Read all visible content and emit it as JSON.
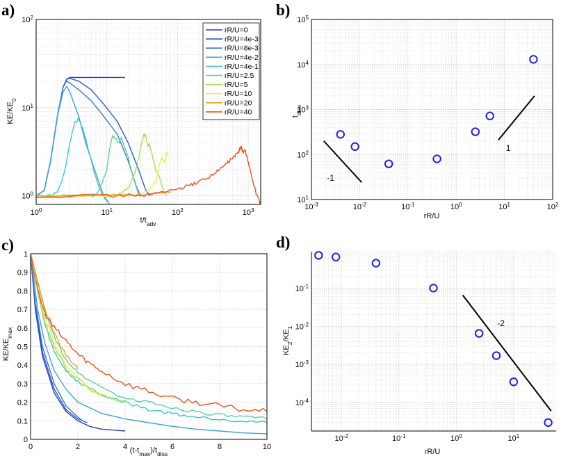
{
  "chart_data": [
    {
      "panel": "a",
      "panel_label": "a)",
      "type": "line",
      "xscale": "log",
      "yscale": "log",
      "xlim": [
        1,
        1500
      ],
      "ylim": [
        0.8,
        100
      ],
      "xlabel": "t/t",
      "xlabel_sub": "adv",
      "ylabel": "KE/KE",
      "ylabel_sub": "0",
      "xticks": [
        1,
        10,
        100,
        1000
      ],
      "yticks": [
        1,
        10,
        100
      ],
      "legend_position": "top-right",
      "series": [
        {
          "name": "rR/U=0",
          "color": "#1f3fbf",
          "x": [
            1,
            1.3,
            1.6,
            2,
            2.4,
            2.7,
            3,
            4,
            6,
            10,
            15,
            18
          ],
          "y": [
            1,
            1.15,
            2.5,
            8,
            17,
            21,
            22,
            22,
            22,
            22,
            22,
            22
          ]
        },
        {
          "name": "rR/U=4e-3",
          "color": "#2b55d6",
          "x": [
            1,
            1.3,
            1.6,
            2,
            2.4,
            2.7,
            3,
            4,
            6,
            9,
            14,
            20,
            28,
            35,
            40
          ],
          "y": [
            1,
            1.15,
            2.5,
            8,
            17,
            21,
            21.5,
            20,
            16,
            11,
            7,
            4,
            2,
            1.2,
            1
          ]
        },
        {
          "name": "rR/U=8e-3",
          "color": "#3a73c8",
          "x": [
            1,
            1.3,
            1.6,
            2,
            2.4,
            2.7,
            3,
            4,
            6,
            9,
            14,
            20,
            26,
            30
          ],
          "y": [
            1,
            1.15,
            2.5,
            8,
            17,
            20,
            19,
            16,
            12,
            8,
            5,
            2.5,
            1.3,
            1
          ]
        },
        {
          "name": "rR/U=4e-2",
          "color": "#3f9fe0",
          "x": [
            1,
            1.3,
            1.6,
            2,
            2.4,
            2.7,
            3,
            4,
            5,
            7,
            9,
            11
          ],
          "y": [
            1,
            1.15,
            2.5,
            8,
            15,
            17.5,
            15,
            8,
            4,
            1.8,
            1,
            0.8
          ]
        },
        {
          "name": "rR/U=4e-1",
          "color": "#38c8c8",
          "x": [
            1,
            1.6,
            2,
            2.5,
            3,
            3.5,
            4,
            4.5,
            5,
            6,
            7,
            8,
            9,
            10
          ],
          "y": [
            1,
            1,
            1.1,
            1.8,
            4,
            6.8,
            7.5,
            6,
            4.5,
            2.5,
            1.6,
            1.2,
            1,
            0.85
          ]
        },
        {
          "name": "rR/U=2.5",
          "color": "#5ad29a",
          "x": [
            1,
            3,
            5,
            7,
            8,
            10,
            11,
            12,
            13,
            15,
            16,
            18,
            20,
            22,
            25,
            28,
            30
          ],
          "y": [
            1,
            1,
            1,
            1.05,
            1.2,
            2,
            3.5,
            4.8,
            4.5,
            4,
            4.6,
            3.5,
            2.8,
            2,
            1.4,
            1.05,
            1
          ]
        },
        {
          "name": "rR/U=5",
          "color": "#a6df5a",
          "x": [
            1,
            5,
            10,
            15,
            20,
            25,
            28,
            30,
            33,
            35,
            38,
            40,
            45,
            50,
            55,
            60,
            65,
            70
          ],
          "y": [
            1,
            1,
            1,
            1.05,
            1.2,
            1.8,
            2.6,
            3.5,
            4.8,
            5,
            3.6,
            3.9,
            2.6,
            1.9,
            1.7,
            1.3,
            1.1,
            1
          ]
        },
        {
          "name": "rR/U=10",
          "color": "#f0ec50",
          "x": [
            1,
            10,
            20,
            30,
            40,
            50,
            55,
            60,
            65,
            70,
            75
          ],
          "y": [
            1,
            1,
            1,
            1.05,
            1.2,
            1.5,
            2.2,
            2.7,
            2.4,
            3.1,
            2.8
          ]
        },
        {
          "name": "rR/U=20",
          "color": "#f5a020",
          "x": [
            1,
            10,
            20,
            40,
            60,
            70,
            80
          ],
          "y": [
            1,
            1,
            1.02,
            1.06,
            1.1,
            1.12,
            1.12
          ]
        },
        {
          "name": "rR/U=40",
          "color": "#f0501e",
          "x": [
            1,
            10,
            30,
            60,
            100,
            150,
            200,
            300,
            400,
            500,
            600,
            700,
            750,
            800,
            850,
            900,
            1000,
            1200,
            1400,
            1500
          ],
          "y": [
            1,
            1,
            1.02,
            1.08,
            1.2,
            1.3,
            1.45,
            1.7,
            2,
            2.35,
            2.7,
            3,
            3.3,
            3.6,
            3.1,
            3.3,
            2.4,
            1.3,
            0.9,
            0.8
          ]
        }
      ]
    },
    {
      "panel": "b",
      "panel_label": "b)",
      "type": "scatter",
      "xscale": "log",
      "yscale": "log",
      "xlim": [
        0.001,
        100
      ],
      "ylim": [
        10,
        100000
      ],
      "xlabel": "rR/U",
      "ylabel": "t",
      "ylabel_sub": "diss",
      "xticks": [
        0.001,
        0.01,
        0.1,
        1,
        10,
        100
      ],
      "yticks": [
        10,
        100,
        1000,
        10000,
        100000
      ],
      "points": {
        "x": [
          0.004,
          0.008,
          0.04,
          0.4,
          2.5,
          5,
          40
        ],
        "y": [
          280,
          150,
          62,
          80,
          320,
          720,
          13000
        ]
      },
      "slope_lines": [
        {
          "label": "-1",
          "x": [
            0.0018,
            0.011
          ],
          "y": [
            200,
            24
          ],
          "label_x": 0.0025,
          "label_y": 30
        },
        {
          "label": "1",
          "x": [
            7.5,
            42
          ],
          "y": [
            210,
            2000
          ],
          "label_x": 12,
          "label_y": 140
        }
      ]
    },
    {
      "panel": "c",
      "panel_label": "c)",
      "type": "line",
      "xscale": "linear",
      "yscale": "linear",
      "xlim": [
        0,
        10
      ],
      "ylim": [
        0,
        1
      ],
      "xlabel": "(t-t",
      "xlabel_sub1": "max",
      "xlabel_mid": ")/t",
      "xlabel_sub2": "diss",
      "ylabel": "KE/KE",
      "ylabel_sub": "max",
      "xticks": [
        0,
        2,
        4,
        6,
        8,
        10
      ],
      "yticks": [
        0,
        0.1,
        0.2,
        0.3,
        0.4,
        0.5,
        0.6,
        0.7,
        0.8,
        0.9,
        1
      ],
      "series": [
        {
          "name": "rR/U=0",
          "color": "#1f3fbf",
          "x": [
            0,
            0.2,
            0.5,
            1,
            1.5,
            2,
            2.5,
            3,
            3.5,
            4
          ],
          "y": [
            1,
            0.7,
            0.45,
            0.25,
            0.15,
            0.1,
            0.07,
            0.055,
            0.05,
            0.045
          ]
        },
        {
          "name": "rR/U=4e-3",
          "color": "#2b55d6",
          "x": [
            0,
            0.2,
            0.5,
            1,
            1.5,
            2,
            2.4
          ],
          "y": [
            1,
            0.72,
            0.47,
            0.27,
            0.16,
            0.11,
            0.09
          ]
        },
        {
          "name": "rR/U=8e-3",
          "color": "#3a73c8",
          "x": [
            0,
            0.2,
            0.5,
            1,
            1.5,
            2,
            2.2
          ],
          "y": [
            1,
            0.74,
            0.5,
            0.3,
            0.18,
            0.12,
            0.1
          ]
        },
        {
          "name": "rR/U=4e-2",
          "color": "#3f9fe0",
          "x": [
            0,
            0.3,
            0.6,
            1,
            1.5,
            2,
            3,
            4,
            5,
            6,
            7,
            8,
            9,
            10
          ],
          "y": [
            1,
            0.7,
            0.52,
            0.37,
            0.27,
            0.2,
            0.14,
            0.11,
            0.09,
            0.07,
            0.055,
            0.045,
            0.035,
            0.03
          ]
        },
        {
          "name": "rR/U=4e-1",
          "color": "#38c8c8",
          "x": [
            0,
            0.3,
            0.6,
            1,
            1.5,
            2,
            3,
            4,
            5,
            6,
            7,
            8,
            9,
            10
          ],
          "y": [
            1,
            0.8,
            0.62,
            0.47,
            0.37,
            0.31,
            0.24,
            0.2,
            0.16,
            0.14,
            0.12,
            0.11,
            0.1,
            0.09
          ]
        },
        {
          "name": "rR/U=2.5",
          "color": "#5ad29a",
          "x": [
            0,
            0.3,
            0.6,
            1,
            1.5,
            2,
            3,
            4,
            5,
            6,
            7,
            8,
            9,
            10
          ],
          "y": [
            1,
            0.85,
            0.7,
            0.55,
            0.43,
            0.36,
            0.28,
            0.22,
            0.2,
            0.17,
            0.15,
            0.13,
            0.12,
            0.11
          ]
        },
        {
          "name": "rR/U=5",
          "color": "#a6df5a",
          "x": [
            0,
            0.3,
            0.6,
            1,
            1.3,
            1.6,
            2,
            2.5,
            3,
            3.5,
            4
          ],
          "y": [
            1,
            0.8,
            0.63,
            0.5,
            0.43,
            0.36,
            0.33,
            0.27,
            0.24,
            0.21,
            0.2
          ]
        },
        {
          "name": "rR/U=10",
          "color": "#f0ec50",
          "x": [
            0,
            0.3,
            0.6,
            1,
            1.5,
            2,
            2.5,
            3
          ],
          "y": [
            1,
            0.82,
            0.66,
            0.52,
            0.4,
            0.33,
            0.27,
            0.24
          ]
        },
        {
          "name": "rR/U=20",
          "color": "#f5a020",
          "x": [
            0,
            0.3,
            0.6,
            1,
            1.5,
            2
          ],
          "y": [
            1,
            0.85,
            0.7,
            0.57,
            0.45,
            0.38
          ]
        },
        {
          "name": "rR/U=40",
          "color": "#f0501e",
          "x": [
            0,
            0.3,
            0.6,
            1,
            1.5,
            2,
            2.5,
            3,
            4,
            5,
            6,
            7,
            8,
            9,
            10
          ],
          "y": [
            1,
            0.8,
            0.68,
            0.6,
            0.53,
            0.46,
            0.41,
            0.37,
            0.3,
            0.26,
            0.22,
            0.2,
            0.18,
            0.16,
            0.15
          ]
        }
      ]
    },
    {
      "panel": "d",
      "panel_label": "d)",
      "type": "scatter",
      "xscale": "log",
      "yscale": "log",
      "xlim": [
        0.003,
        55
      ],
      "ylim": [
        1.8e-05,
        0.9
      ],
      "xlabel": "rR/U",
      "ylabel": "KE",
      "ylabel_sub1": "2",
      "ylabel_mid": "/KE",
      "ylabel_sub2": "1",
      "xticks": [
        0.01,
        0.1,
        1,
        10
      ],
      "yticks": [
        0.0001,
        0.001,
        0.01,
        0.1
      ],
      "points": {
        "x": [
          0.004,
          0.008,
          0.04,
          0.4,
          2.5,
          5,
          10,
          40
        ],
        "y": [
          0.72,
          0.65,
          0.45,
          0.1,
          0.0065,
          0.0017,
          0.00035,
          3e-05
        ]
      },
      "slope_lines": [
        {
          "label": "-2",
          "x": [
            1.3,
            45
          ],
          "y": [
            0.065,
            6e-05
          ],
          "label_x": 6,
          "label_y": 0.012
        }
      ]
    }
  ],
  "panel_a_legend_title": "",
  "tick_labels": {
    "log_base": "10",
    "a_x_exp": [
      "0",
      "1",
      "2",
      "3"
    ],
    "a_y_exp": [
      "0",
      "1",
      "2"
    ],
    "b_x_exp": [
      "-3",
      "-2",
      "-1",
      "0",
      "1",
      "2"
    ],
    "b_y_exp": [
      "1",
      "2",
      "3",
      "4",
      "5"
    ],
    "c_x": [
      "0",
      "2",
      "4",
      "6",
      "8",
      "10"
    ],
    "c_y": [
      "0",
      "0.1",
      "0.2",
      "0.3",
      "0.4",
      "0.5",
      "0.6",
      "0.7",
      "0.8",
      "0.9",
      "1"
    ],
    "d_x_exp": [
      "-2",
      "-1",
      "0",
      "1"
    ],
    "d_y_exp": [
      "-4",
      "-3",
      "-2",
      "-1"
    ]
  }
}
